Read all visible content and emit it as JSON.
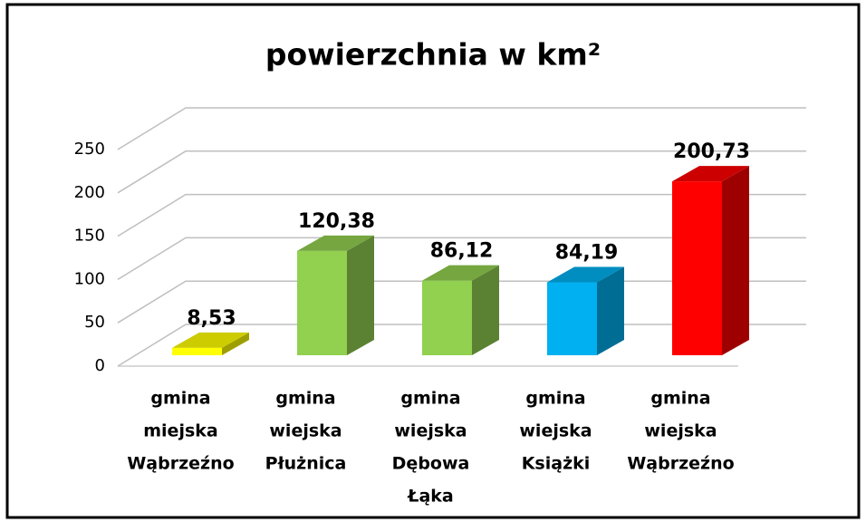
{
  "chart_data": {
    "type": "bar3d",
    "title": "powierzchnia w km²",
    "categories": [
      [
        "gmina",
        "miejska",
        "Wąbrzeźno"
      ],
      [
        "gmina",
        "wiejska",
        "Płużnica"
      ],
      [
        "gmina",
        "wiejska",
        "Dębowa",
        "Łąka"
      ],
      [
        "gmina",
        "wiejska",
        "Książki"
      ],
      [
        "gmina",
        "wiejska",
        "Wąbrzeźno"
      ]
    ],
    "values": [
      8.53,
      120.38,
      86.12,
      84.19,
      200.73
    ],
    "value_labels": [
      "8,53",
      "120,38",
      "86,12",
      "84,19",
      "200,73"
    ],
    "colors": [
      "#ffff00",
      "#92d050",
      "#92d050",
      "#00b0f0",
      "#ff0000"
    ],
    "ylim": [
      0,
      250
    ],
    "yticks": [
      0,
      50,
      100,
      150,
      200,
      250
    ],
    "grid": true
  }
}
